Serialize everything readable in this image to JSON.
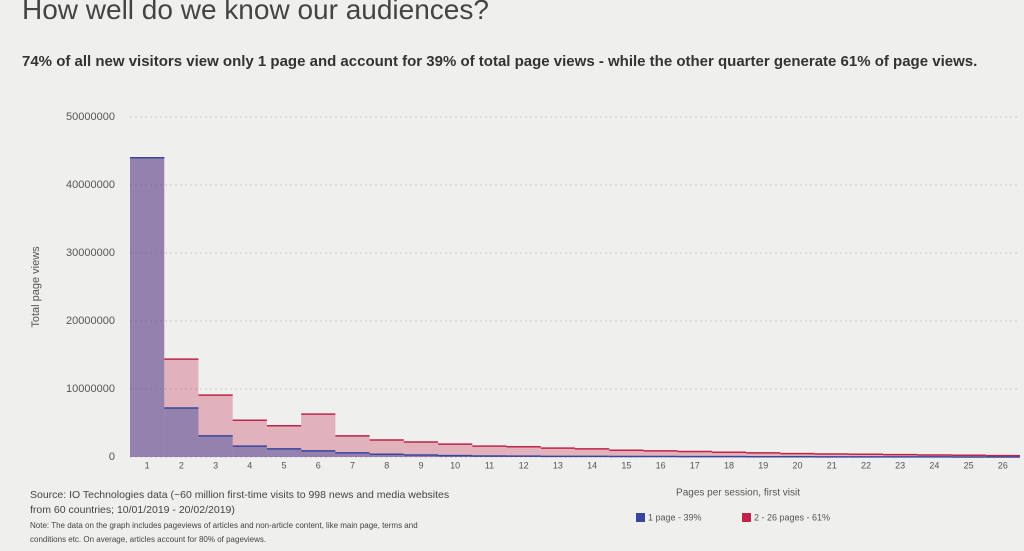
{
  "chart_data": {
    "type": "step-area",
    "title": "How well do we know our audiences?",
    "subtitle": "74% of all new visitors view only 1 page and account for 39% of total page views - while the other quarter generate 61% of page views.",
    "y_label": "Total page views",
    "x_label": "Pages per session, first visit",
    "source": "Source: IO Technologies data (~60 million first-time visits to 998 news and media websites from 60 countries; 10/01/2019 - 20/02/2019)",
    "note": "Note: The data on the graph includes pageviews of articles and non-article content, like main page, terms and conditions etc. On average, articles account for 80% of pageviews.",
    "categories": [
      "1",
      "2",
      "3",
      "4",
      "5",
      "6",
      "7",
      "8",
      "9",
      "10",
      "11",
      "12",
      "13",
      "14",
      "15",
      "16",
      "17",
      "18",
      "19",
      "20",
      "21",
      "22",
      "23",
      "24",
      "25",
      "26"
    ],
    "series": [
      {
        "name": "2 - 26 pages - 61%",
        "color": "#c0234a",
        "values": [
          44000000,
          14400000,
          9100000,
          5400000,
          4600000,
          6300000,
          3100000,
          2500000,
          2200000,
          1900000,
          1600000,
          1500000,
          1300000,
          1200000,
          1000000,
          900000,
          800000,
          700000,
          600000,
          500000,
          450000,
          400000,
          350000,
          300000,
          250000,
          200000
        ]
      },
      {
        "name": "1 page - 39%",
        "color": "#3a45a0",
        "values": [
          44000000,
          7200000,
          3100000,
          1600000,
          1200000,
          900000,
          600000,
          400000,
          300000,
          200000,
          150000,
          120000,
          100000,
          90000,
          80000,
          70000,
          60000,
          50000,
          40000,
          30000,
          25000,
          20000,
          15000,
          10000,
          8000,
          6000
        ]
      }
    ],
    "ylim": [
      0,
      50000000
    ],
    "yticks": [
      0,
      10000000,
      20000000,
      30000000,
      40000000,
      50000000
    ],
    "grid": true
  }
}
